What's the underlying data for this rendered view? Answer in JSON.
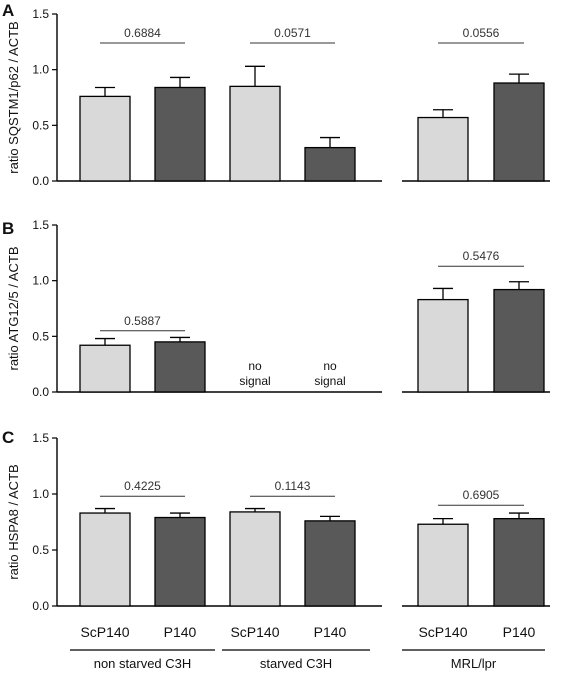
{
  "chart_data": [
    {
      "type": "bar",
      "panel": "A",
      "ylabel": "ratio SQSTM1/p62 / ACTB",
      "ylim": [
        0,
        1.5
      ],
      "yticks": [
        "0.0",
        "0.5",
        "1.0",
        "1.5"
      ],
      "bars": [
        {
          "category": "ScP140",
          "group": "non starved C3H",
          "value": 0.76,
          "error": 0.08,
          "color": "#d9d9d9"
        },
        {
          "category": "P140",
          "group": "non starved C3H",
          "value": 0.84,
          "error": 0.09,
          "color": "#595959"
        },
        {
          "category": "ScP140",
          "group": "starved C3H",
          "value": 0.85,
          "error": 0.18,
          "color": "#d9d9d9"
        },
        {
          "category": "P140",
          "group": "starved C3H",
          "value": 0.3,
          "error": 0.09,
          "color": "#595959"
        },
        {
          "category": "ScP140",
          "group": "MRL/lpr",
          "value": 0.57,
          "error": 0.07,
          "color": "#d9d9d9"
        },
        {
          "category": "P140",
          "group": "MRL/lpr",
          "value": 0.88,
          "error": 0.08,
          "color": "#595959"
        }
      ],
      "comparisons": [
        {
          "pair": [
            0,
            1
          ],
          "label": "0.6884",
          "level": 1.24
        },
        {
          "pair": [
            2,
            3
          ],
          "label": "0.0571",
          "level": 1.24
        },
        {
          "pair": [
            4,
            5
          ],
          "label": "0.0556",
          "level": 1.24
        }
      ],
      "annotations": []
    },
    {
      "type": "bar",
      "panel": "B",
      "ylabel": "ratio ATG12/5 / ACTB",
      "ylim": [
        0,
        1.5
      ],
      "yticks": [
        "0.0",
        "0.5",
        "1.0",
        "1.5"
      ],
      "bars": [
        {
          "category": "ScP140",
          "group": "non starved C3H",
          "value": 0.42,
          "error": 0.06,
          "color": "#d9d9d9"
        },
        {
          "category": "P140",
          "group": "non starved C3H",
          "value": 0.45,
          "error": 0.04,
          "color": "#595959"
        },
        {
          "category": "ScP140",
          "group": "starved C3H",
          "value": null,
          "error": null,
          "color": "#d9d9d9"
        },
        {
          "category": "P140",
          "group": "starved C3H",
          "value": null,
          "error": null,
          "color": "#595959"
        },
        {
          "category": "ScP140",
          "group": "MRL/lpr",
          "value": 0.83,
          "error": 0.1,
          "color": "#d9d9d9"
        },
        {
          "category": "P140",
          "group": "MRL/lpr",
          "value": 0.92,
          "error": 0.07,
          "color": "#595959"
        }
      ],
      "comparisons": [
        {
          "pair": [
            0,
            1
          ],
          "label": "0.5887",
          "level": 0.55
        },
        {
          "pair": [
            4,
            5
          ],
          "label": "0.5476",
          "level": 1.13
        }
      ],
      "annotations": [
        {
          "bar": 2,
          "lines": [
            "no",
            "signal"
          ]
        },
        {
          "bar": 3,
          "lines": [
            "no",
            "signal"
          ]
        }
      ]
    },
    {
      "type": "bar",
      "panel": "C",
      "ylabel": "ratio HSPA8 / ACTB",
      "ylim": [
        0,
        1.5
      ],
      "yticks": [
        "0.0",
        "0.5",
        "1.0",
        "1.5"
      ],
      "bars": [
        {
          "category": "ScP140",
          "group": "non starved C3H",
          "value": 0.83,
          "error": 0.04,
          "color": "#d9d9d9"
        },
        {
          "category": "P140",
          "group": "non starved C3H",
          "value": 0.79,
          "error": 0.04,
          "color": "#595959"
        },
        {
          "category": "ScP140",
          "group": "starved C3H",
          "value": 0.84,
          "error": 0.03,
          "color": "#d9d9d9"
        },
        {
          "category": "P140",
          "group": "starved C3H",
          "value": 0.76,
          "error": 0.04,
          "color": "#595959"
        },
        {
          "category": "ScP140",
          "group": "MRL/lpr",
          "value": 0.73,
          "error": 0.05,
          "color": "#d9d9d9"
        },
        {
          "category": "P140",
          "group": "MRL/lpr",
          "value": 0.78,
          "error": 0.05,
          "color": "#595959"
        }
      ],
      "comparisons": [
        {
          "pair": [
            0,
            1
          ],
          "label": "0.4225",
          "level": 0.98
        },
        {
          "pair": [
            2,
            3
          ],
          "label": "0.1143",
          "level": 0.98
        },
        {
          "pair": [
            4,
            5
          ],
          "label": "0.6905",
          "level": 0.9
        }
      ],
      "annotations": []
    }
  ],
  "x_tick_labels": [
    "ScP140",
    "P140",
    "ScP140",
    "P140",
    "ScP140",
    "P140"
  ],
  "group_labels": [
    "non starved C3H",
    "starved C3H",
    "MRL/lpr"
  ]
}
